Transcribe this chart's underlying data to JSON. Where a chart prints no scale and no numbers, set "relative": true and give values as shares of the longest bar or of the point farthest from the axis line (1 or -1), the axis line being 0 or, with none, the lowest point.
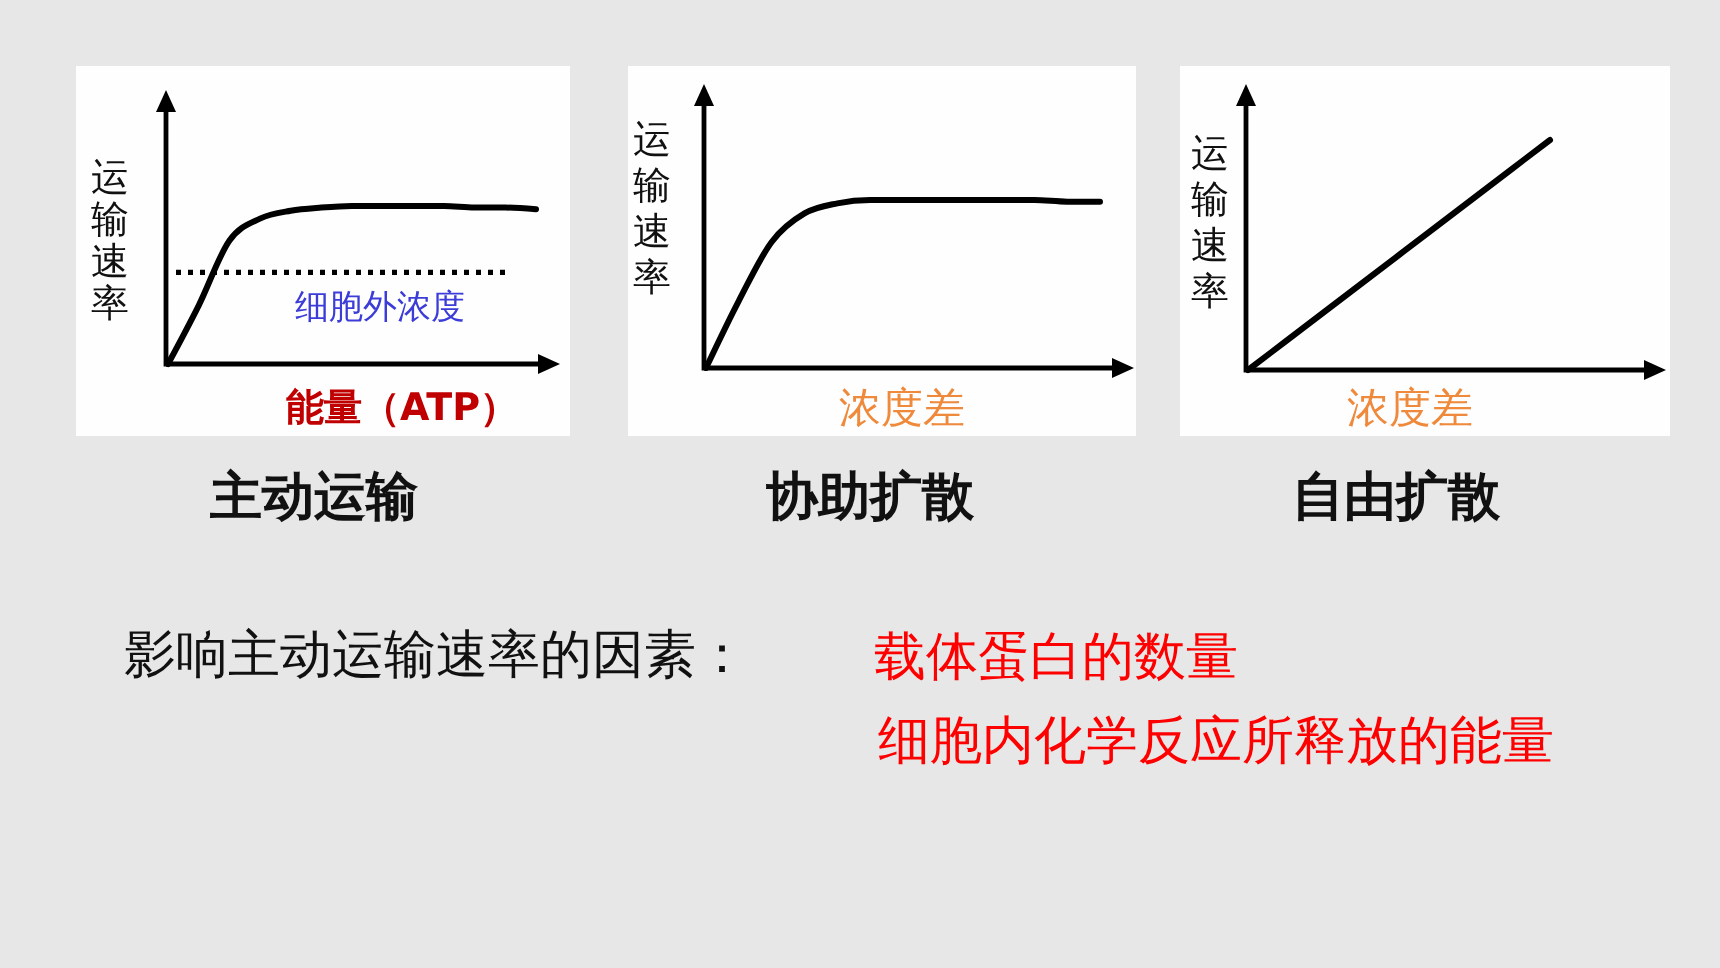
{
  "chart_data": [
    {
      "type": "line",
      "title": "主动运输",
      "xlabel": "能量（ATP）",
      "ylabel": "运输速率",
      "categories": [
        null,
        null,
        null,
        null,
        null,
        null,
        null,
        null,
        null,
        null,
        null,
        null,
        null
      ],
      "values": [
        0,
        0.37,
        0.78,
        0.92,
        0.97,
        0.99,
        1,
        1,
        1,
        1,
        0.99,
        0.99,
        0.98
      ],
      "color": "#000000",
      "relative": true,
      "ref_lines": [
        {
          "axis": "y",
          "value": 0.58,
          "label": "细胞外浓度",
          "color": "#000000",
          "line_style": "dotted"
        }
      ]
    },
    {
      "type": "line",
      "title": "协助扩散",
      "xlabel": "浓度差",
      "ylabel": "运输速率",
      "categories": [
        null,
        null,
        null,
        null,
        null,
        null,
        null,
        null,
        null,
        null,
        null,
        null,
        null
      ],
      "values": [
        0,
        0.4,
        0.75,
        0.92,
        0.98,
        1,
        1,
        1,
        1,
        1,
        1,
        0.99,
        0.99
      ],
      "color": "#000000",
      "relative": true
    },
    {
      "type": "line",
      "title": "自由扩散",
      "xlabel": "浓度差",
      "ylabel": "运输速率",
      "categories": [
        null,
        null,
        null,
        null,
        null
      ],
      "values": [
        0,
        0.25,
        0.5,
        0.75,
        1
      ],
      "color": "#000000",
      "relative": true
    },
    {
      "type": "other",
      "annotations": [
        "影响主动运输速率的因素：",
        "载体蛋白的数量",
        "细胞内化学反应所释放的能量"
      ]
    }
  ]
}
